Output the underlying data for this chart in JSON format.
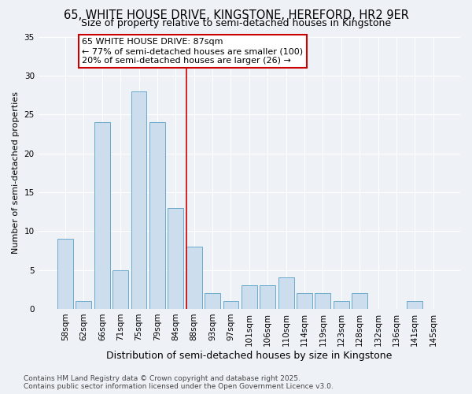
{
  "title": "65, WHITE HOUSE DRIVE, KINGSTONE, HEREFORD, HR2 9ER",
  "subtitle": "Size of property relative to semi-detached houses in Kingstone",
  "xlabel": "Distribution of semi-detached houses by size in Kingstone",
  "ylabel": "Number of semi-detached properties",
  "categories": [
    "58sqm",
    "62sqm",
    "66sqm",
    "71sqm",
    "75sqm",
    "79sqm",
    "84sqm",
    "88sqm",
    "93sqm",
    "97sqm",
    "101sqm",
    "106sqm",
    "110sqm",
    "114sqm",
    "119sqm",
    "123sqm",
    "128sqm",
    "132sqm",
    "136sqm",
    "141sqm",
    "145sqm"
  ],
  "values": [
    9,
    1,
    24,
    5,
    28,
    24,
    13,
    8,
    2,
    1,
    3,
    3,
    4,
    2,
    2,
    1,
    2,
    0,
    0,
    1,
    0
  ],
  "bar_color": "#ccdded",
  "bar_edge_color": "#6aaacb",
  "vline_x": 7,
  "annotation_title": "65 WHITE HOUSE DRIVE: 87sqm",
  "annotation_line1": "← 77% of semi-detached houses are smaller (100)",
  "annotation_line2": "20% of semi-detached houses are larger (26) →",
  "annotation_box_color": "#ffffff",
  "annotation_box_edge_color": "#cc0000",
  "vline_color": "#cc0000",
  "ylim": [
    0,
    35
  ],
  "yticks": [
    0,
    5,
    10,
    15,
    20,
    25,
    30,
    35
  ],
  "footer1": "Contains HM Land Registry data © Crown copyright and database right 2025.",
  "footer2": "Contains public sector information licensed under the Open Government Licence v3.0.",
  "background_color": "#eef2f7",
  "grid_color": "#ffffff",
  "title_fontsize": 10.5,
  "subtitle_fontsize": 9,
  "ylabel_fontsize": 8,
  "xlabel_fontsize": 9,
  "tick_fontsize": 7.5,
  "annotation_fontsize": 8,
  "footer_fontsize": 6.5
}
